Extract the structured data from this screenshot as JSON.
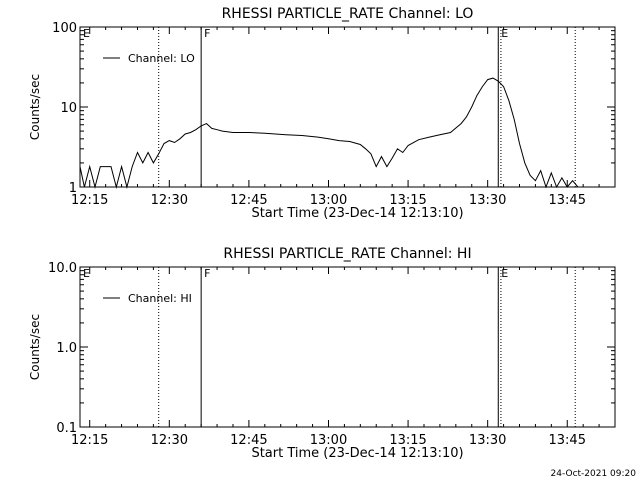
{
  "footer": {
    "timestamp": "24-Oct-2021 09:20"
  },
  "chart_data": [
    {
      "type": "line",
      "title": "RHESSI PARTICLE_RATE Channel: LO",
      "xlabel": "Start Time (23-Dec-14 12:13:10)",
      "ylabel": "Counts/sec",
      "yscale": "log",
      "xlim": [
        "12:13:10",
        "13:54:00"
      ],
      "ylim": [
        1,
        100
      ],
      "xticks": [
        "12:15",
        "12:30",
        "12:45",
        "13:00",
        "13:15",
        "13:30",
        "13:45"
      ],
      "yticks": [
        "1",
        "10",
        "100"
      ],
      "legend": {
        "position": "top-left",
        "entries": [
          "Channel: LO"
        ]
      },
      "flags": [
        {
          "label": "E",
          "time": "12:13:10",
          "style": "none"
        },
        {
          "label": "F",
          "time": "12:36:00",
          "style": "solid"
        },
        {
          "label": "E",
          "time": "13:32:00",
          "style": "solid"
        }
      ],
      "markers": [
        {
          "time": "12:28:00",
          "style": "dotted"
        },
        {
          "time": "13:32:30",
          "style": "dotted"
        },
        {
          "time": "13:46:30",
          "style": "dotted"
        }
      ],
      "series": [
        {
          "name": "Channel: LO",
          "x": [
            "12:13:10",
            "12:14:00",
            "12:15:00",
            "12:16:00",
            "12:17:00",
            "12:18:00",
            "12:19:00",
            "12:20:00",
            "12:21:00",
            "12:22:00",
            "12:23:00",
            "12:24:00",
            "12:25:00",
            "12:26:00",
            "12:27:00",
            "12:28:00",
            "12:29:00",
            "12:30:00",
            "12:31:00",
            "12:32:00",
            "12:33:00",
            "12:34:00",
            "12:35:00",
            "12:36:00",
            "12:37:00",
            "12:38:00",
            "12:39:00",
            "12:40:00",
            "12:42:00",
            "12:45:00",
            "12:48:00",
            "12:50:00",
            "12:52:00",
            "12:55:00",
            "12:58:00",
            "13:00:00",
            "13:02:00",
            "13:04:00",
            "13:06:00",
            "13:07:00",
            "13:08:00",
            "13:09:00",
            "13:10:00",
            "13:11:00",
            "13:12:00",
            "13:13:00",
            "13:14:00",
            "13:15:00",
            "13:17:00",
            "13:19:00",
            "13:21:00",
            "13:23:00",
            "13:25:00",
            "13:26:00",
            "13:27:00",
            "13:28:00",
            "13:29:00",
            "13:30:00",
            "13:31:00",
            "13:32:00",
            "13:33:00",
            "13:34:00",
            "13:35:00",
            "13:36:00",
            "13:37:00",
            "13:38:00",
            "13:39:00",
            "13:40:00",
            "13:41:00",
            "13:42:00",
            "13:43:00",
            "13:44:00",
            "13:45:00",
            "13:46:00",
            "13:47:00"
          ],
          "y": [
            1.8,
            1,
            1.8,
            1,
            1.8,
            1.8,
            1.8,
            1,
            1.8,
            1,
            1.8,
            2.7,
            2,
            2.7,
            2,
            2.6,
            3.5,
            3.8,
            3.6,
            4,
            4.6,
            4.8,
            5.2,
            5.8,
            6.2,
            5.4,
            5.2,
            5,
            4.8,
            4.8,
            4.7,
            4.6,
            4.5,
            4.4,
            4.2,
            4,
            3.8,
            3.7,
            3.4,
            3,
            2.6,
            1.8,
            2.4,
            1.8,
            2.3,
            3,
            2.7,
            3.3,
            3.9,
            4.2,
            4.5,
            4.8,
            6.2,
            7.5,
            10,
            14,
            18,
            22,
            23,
            21,
            18,
            12,
            7,
            3.5,
            2,
            1.4,
            1.2,
            1.6,
            1,
            1.5,
            1,
            1.3,
            1,
            1.2,
            1
          ]
        }
      ]
    },
    {
      "type": "line",
      "title": "RHESSI PARTICLE_RATE Channel: HI",
      "xlabel": "Start Time (23-Dec-14 12:13:10)",
      "ylabel": "Counts/sec",
      "yscale": "log",
      "xlim": [
        "12:13:10",
        "13:54:00"
      ],
      "ylim": [
        0.1,
        10
      ],
      "xticks": [
        "12:15",
        "12:30",
        "12:45",
        "13:00",
        "13:15",
        "13:30",
        "13:45"
      ],
      "yticks": [
        "0.1",
        "1.0",
        "10.0"
      ],
      "legend": {
        "position": "top-left",
        "entries": [
          "Channel: HI"
        ]
      },
      "flags": [
        {
          "label": "E",
          "time": "12:13:10",
          "style": "none"
        },
        {
          "label": "F",
          "time": "12:36:00",
          "style": "solid"
        },
        {
          "label": "E",
          "time": "13:32:00",
          "style": "solid"
        }
      ],
      "markers": [
        {
          "time": "12:28:00",
          "style": "dotted"
        },
        {
          "time": "13:32:30",
          "style": "dotted"
        },
        {
          "time": "13:46:30",
          "style": "dotted"
        }
      ],
      "series": [
        {
          "name": "Channel: HI",
          "x": [],
          "y": []
        }
      ]
    }
  ]
}
